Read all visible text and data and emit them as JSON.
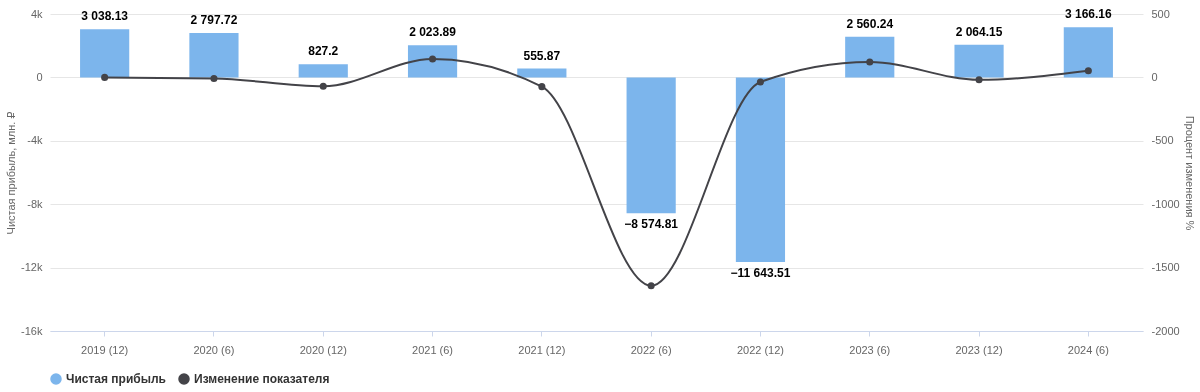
{
  "chart_data": {
    "type": "bar",
    "ylabel": "Чистая прибыль, млн. ₽",
    "y2label": "Процент изменения %",
    "categories": [
      "2019 (12)",
      "2020 (6)",
      "2020 (12)",
      "2021 (6)",
      "2021 (12)",
      "2022 (6)",
      "2022 (12)",
      "2023 (6)",
      "2023 (12)",
      "2024 (6)"
    ],
    "series": [
      {
        "name": "Чистая прибыль",
        "color": "#7cb5ec",
        "values": [
          3038.13,
          2797.72,
          827.2,
          2023.89,
          555.87,
          -8574.81,
          -11643.51,
          2560.24,
          2064.15,
          3166.16
        ],
        "value_labels": [
          "3 038.13",
          "2 797.72",
          "827.2",
          "2 023.89",
          "555.87",
          "−8 574.81",
          "−11 643.51",
          "2 560.24",
          "2 064.15",
          "3 166.16"
        ]
      },
      {
        "name": "Изменение показателя",
        "type": "line",
        "axis": "y2",
        "color": "#434348",
        "marker": "circle",
        "values": [
          0,
          -8,
          -70,
          145,
          -73,
          -1643,
          -36,
          122,
          -19,
          53
        ]
      }
    ],
    "ylim": [
      -16000,
      4000
    ],
    "yticks": [
      {
        "value": 4000,
        "label": "4k"
      },
      {
        "value": 0,
        "label": "0"
      },
      {
        "value": -4000,
        "label": "-4k"
      },
      {
        "value": -8000,
        "label": "-8k"
      },
      {
        "value": -12000,
        "label": "-12k"
      },
      {
        "value": -16000,
        "label": "-16k"
      }
    ],
    "y2lim": [
      -2000,
      500
    ],
    "y2ticks": [
      500,
      0,
      -500,
      -1000,
      -1500,
      -2000
    ],
    "grid": "y",
    "legend": "bottom"
  }
}
